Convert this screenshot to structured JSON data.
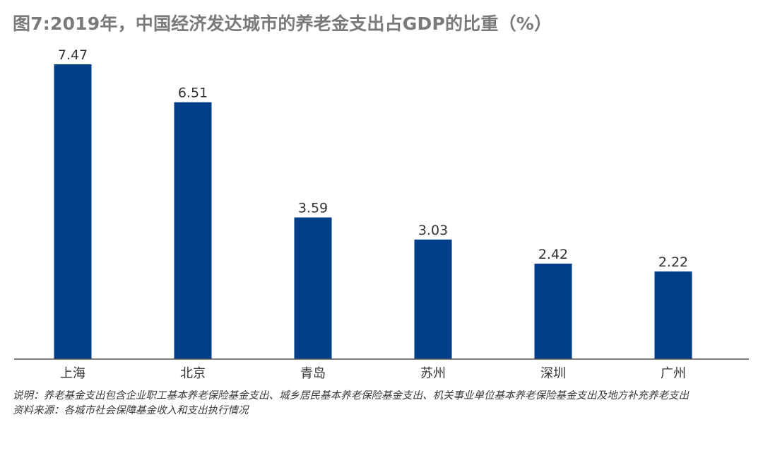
{
  "chart_data": {
    "type": "bar",
    "title": "图7:2019年，中国经济发达城市的养老金支出占GDP的比重（%）",
    "categories": [
      "上海",
      "北京",
      "青岛",
      "苏州",
      "深圳",
      "广州"
    ],
    "values": [
      7.47,
      6.51,
      3.59,
      3.03,
      2.42,
      2.22
    ],
    "data_labels": [
      "7.47",
      "6.51",
      "3.59",
      "3.03",
      "2.42",
      "2.22"
    ],
    "xlabel": "",
    "ylabel": "",
    "ylim": [
      0,
      7.47
    ],
    "grid": false,
    "legend": "none",
    "bar_color": "#003f87",
    "axis_color": "#555555"
  },
  "notes": {
    "explanation": "说明：养老基金支出包含企业职工基本养老保险基金支出、城乡居民基本养老保险基金支出、机关事业单位基本养老保险基金支出及地方补充养老支出",
    "source": "资料来源：各城市社会保障基金收入和支出执行情况"
  }
}
